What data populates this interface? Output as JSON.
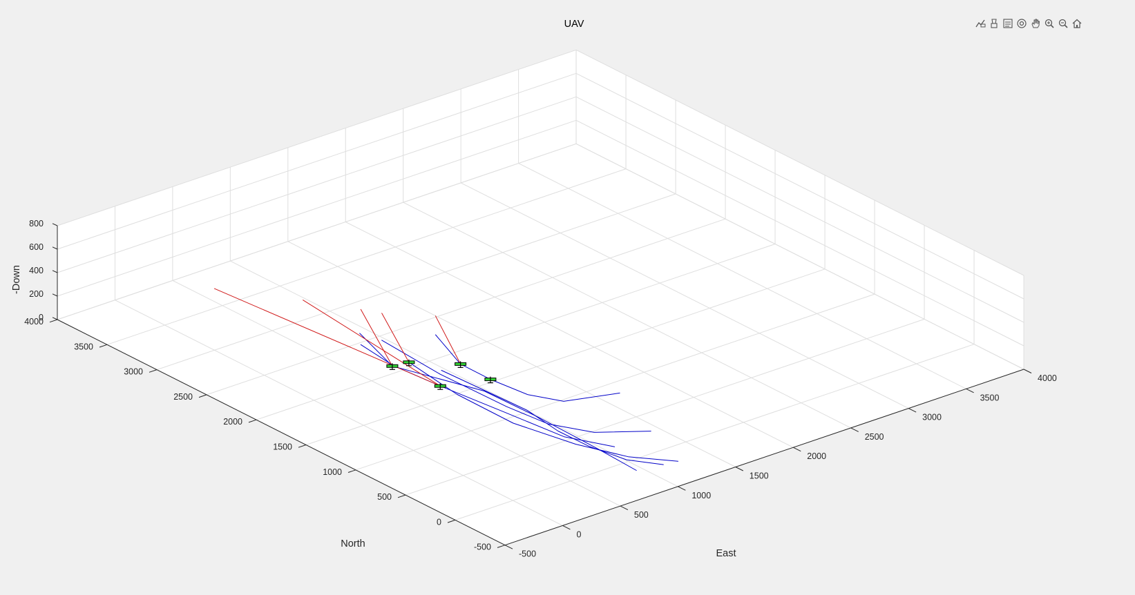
{
  "toolbar": {
    "icons": [
      "data-tips-icon",
      "brush-icon",
      "legend-icon",
      "rotate-3d-icon",
      "pan-icon",
      "zoom-in-icon",
      "zoom-out-icon",
      "home-icon"
    ]
  },
  "colors": {
    "background": "#f0f0f0",
    "axes_background": "#ffffff",
    "grid": "#dedede",
    "axis": "#262626",
    "path_planned": "#0000c8",
    "path_actual": "#d01818",
    "uav_body": "#35d135"
  },
  "chart_data": {
    "type": "line3d",
    "title": "UAV",
    "xlabel": "North",
    "ylabel": "East",
    "zlabel": "-Down",
    "xlim": [
      -500,
      4000
    ],
    "ylim": [
      -500,
      4000
    ],
    "zlim": [
      0,
      800
    ],
    "xticks": [
      "-500",
      "0",
      "500",
      "1000",
      "1500",
      "2000",
      "2500",
      "3000",
      "3500",
      "4000"
    ],
    "yticks": [
      "-500",
      "0",
      "500",
      "1000",
      "1500",
      "2000",
      "2500",
      "3000",
      "3500",
      "4000"
    ],
    "zticks": [
      "0",
      "200",
      "400",
      "600",
      "800"
    ],
    "grid": true,
    "series": [
      {
        "style": "planned",
        "points": [
          [
            -180,
            1150,
            0
          ],
          [
            -30,
            960,
            40
          ],
          [
            180,
            820,
            110
          ],
          [
            380,
            720,
            190
          ],
          [
            600,
            640,
            300
          ],
          [
            1240,
            450,
            430
          ]
        ]
      },
      {
        "style": "planned",
        "points": [
          [
            -200,
            1260,
            0
          ],
          [
            0,
            1000,
            40
          ],
          [
            250,
            760,
            120
          ],
          [
            600,
            520,
            230
          ],
          [
            1000,
            380,
            350
          ],
          [
            1370,
            280,
            500
          ]
        ]
      },
      {
        "style": "planned",
        "points": [
          [
            270,
            1430,
            0
          ],
          [
            400,
            1050,
            60
          ],
          [
            560,
            790,
            150
          ],
          [
            780,
            620,
            260
          ],
          [
            1240,
            440,
            400
          ],
          [
            1700,
            330,
            530
          ]
        ]
      },
      {
        "style": "planned",
        "points": [
          [
            230,
            1080,
            0
          ],
          [
            470,
            850,
            60
          ],
          [
            850,
            660,
            170
          ],
          [
            1240,
            440,
            300
          ],
          [
            1560,
            310,
            380
          ],
          [
            1830,
            260,
            460
          ]
        ]
      },
      {
        "style": "planned",
        "points": [
          [
            850,
            1660,
            0
          ],
          [
            880,
            1200,
            70
          ],
          [
            950,
            950,
            180
          ],
          [
            1130,
            780,
            290
          ],
          [
            1280,
            650,
            400
          ],
          [
            1450,
            580,
            600
          ]
        ]
      },
      {
        "style": "planned",
        "points": [
          [
            -140,
            950,
            0
          ],
          [
            200,
            900,
            60
          ],
          [
            700,
            820,
            140
          ],
          [
            1100,
            700,
            230
          ],
          [
            1560,
            300,
            380
          ],
          [
            1830,
            250,
            560
          ]
        ]
      },
      {
        "style": "actual",
        "points": [
          [
            1240,
            440,
            300
          ],
          [
            3000,
            0,
            525
          ]
        ]
      },
      {
        "style": "actual",
        "points": [
          [
            1240,
            440,
            300
          ],
          [
            2400,
            250,
            600
          ]
        ]
      },
      {
        "style": "actual",
        "points": [
          [
            1560,
            300,
            380
          ],
          [
            1830,
            260,
            760
          ]
        ]
      },
      {
        "style": "actual",
        "points": [
          [
            1370,
            280,
            500
          ],
          [
            1700,
            330,
            760
          ]
        ]
      },
      {
        "style": "actual",
        "points": [
          [
            1280,
            650,
            400
          ],
          [
            1450,
            580,
            760
          ]
        ]
      }
    ],
    "uavs": [
      [
        1240,
        440,
        300
      ],
      [
        1560,
        300,
        380
      ],
      [
        1370,
        280,
        500
      ],
      [
        1280,
        650,
        400
      ],
      [
        1130,
        780,
        290
      ]
    ]
  }
}
